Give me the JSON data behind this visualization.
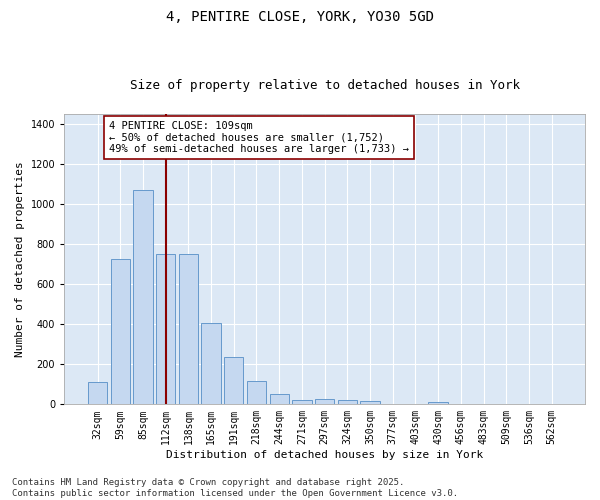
{
  "title1": "4, PENTIRE CLOSE, YORK, YO30 5GD",
  "title2": "Size of property relative to detached houses in York",
  "xlabel": "Distribution of detached houses by size in York",
  "ylabel": "Number of detached properties",
  "categories": [
    "32sqm",
    "59sqm",
    "85sqm",
    "112sqm",
    "138sqm",
    "165sqm",
    "191sqm",
    "218sqm",
    "244sqm",
    "271sqm",
    "297sqm",
    "324sqm",
    "350sqm",
    "377sqm",
    "403sqm",
    "430sqm",
    "456sqm",
    "483sqm",
    "509sqm",
    "536sqm",
    "562sqm"
  ],
  "values": [
    110,
    728,
    1070,
    750,
    750,
    405,
    235,
    115,
    50,
    22,
    28,
    22,
    18,
    0,
    0,
    12,
    0,
    0,
    0,
    0,
    0
  ],
  "bar_color": "#c5d8f0",
  "bar_edge_color": "#6699cc",
  "vline_color": "#8b0000",
  "annotation_text": "4 PENTIRE CLOSE: 109sqm\n← 50% of detached houses are smaller (1,752)\n49% of semi-detached houses are larger (1,733) →",
  "annotation_box_color": "#ffffff",
  "annotation_box_edge": "#8b0000",
  "ylim": [
    0,
    1450
  ],
  "yticks": [
    0,
    200,
    400,
    600,
    800,
    1000,
    1200,
    1400
  ],
  "plot_bg_color": "#dce8f5",
  "footer": "Contains HM Land Registry data © Crown copyright and database right 2025.\nContains public sector information licensed under the Open Government Licence v3.0.",
  "title_fontsize": 10,
  "subtitle_fontsize": 9,
  "axis_fontsize": 8,
  "tick_fontsize": 7,
  "footer_fontsize": 6.5,
  "annot_fontsize": 7.5
}
